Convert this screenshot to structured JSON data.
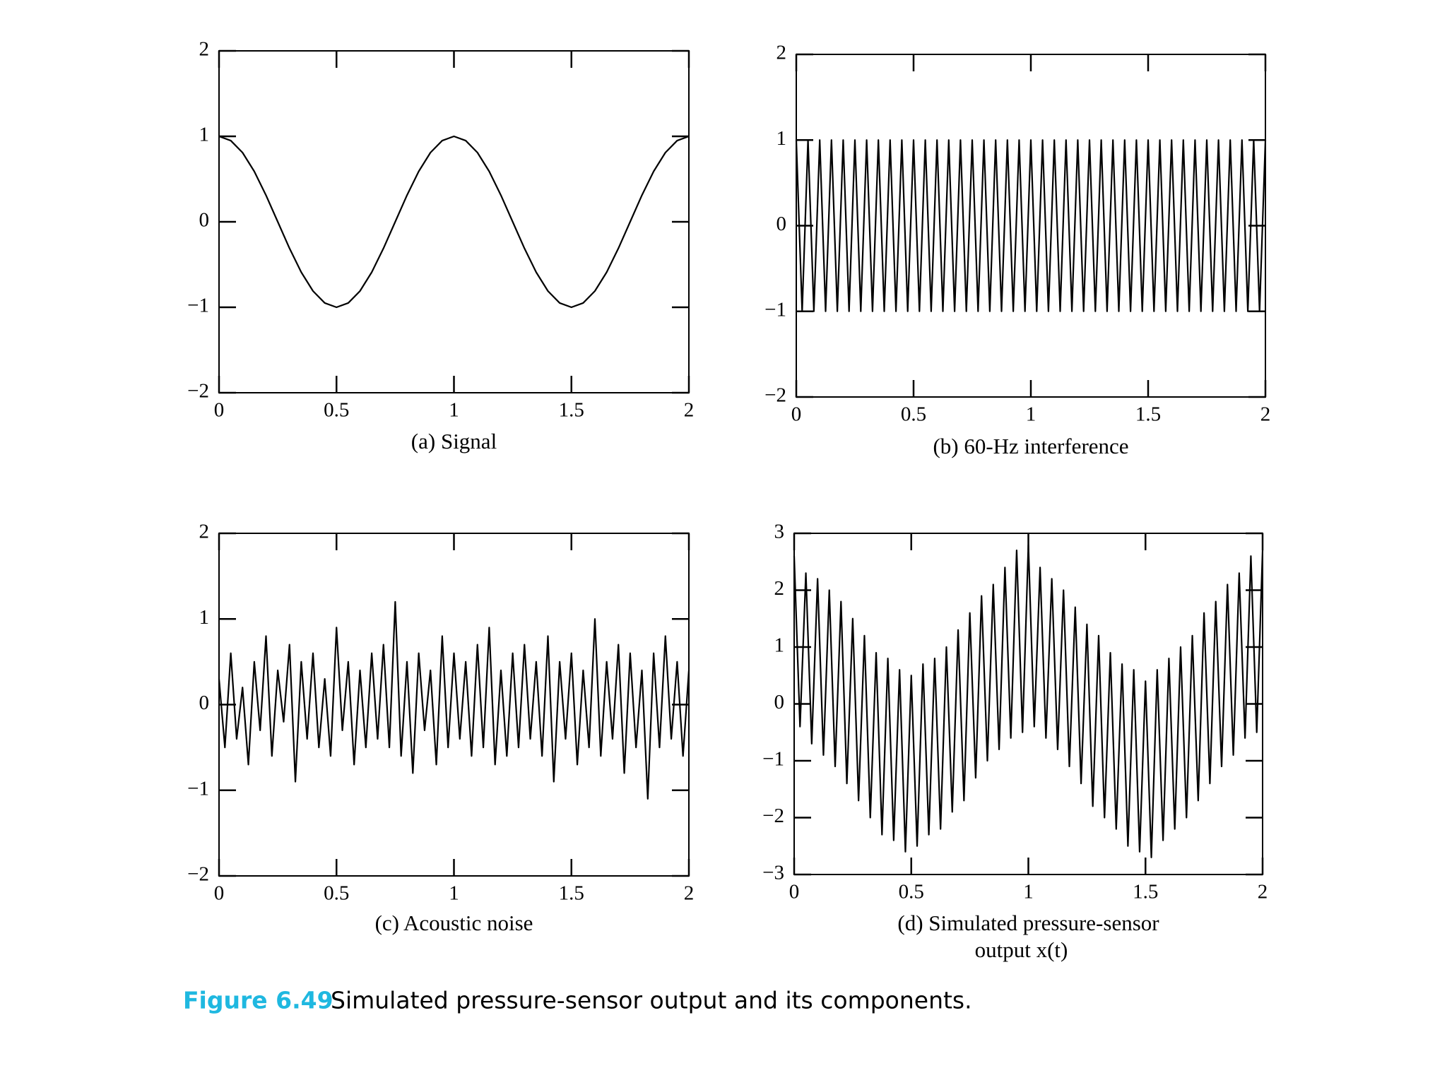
{
  "chart_data": [
    {
      "type": "line",
      "title": "(a) Signal",
      "x": [
        0,
        0.05,
        0.1,
        0.15,
        0.2,
        0.25,
        0.3,
        0.35,
        0.4,
        0.45,
        0.5,
        0.55,
        0.6,
        0.65,
        0.7,
        0.75,
        0.8,
        0.85,
        0.9,
        0.95,
        1,
        1.05,
        1.1,
        1.15,
        1.2,
        1.25,
        1.3,
        1.35,
        1.4,
        1.45,
        1.5,
        1.55,
        1.6,
        1.65,
        1.7,
        1.75,
        1.8,
        1.85,
        1.9,
        1.95,
        2
      ],
      "values": [
        1,
        0.95,
        0.81,
        0.59,
        0.31,
        0,
        -0.31,
        -0.59,
        -0.81,
        -0.95,
        -1,
        -0.95,
        -0.81,
        -0.59,
        -0.31,
        0,
        0.31,
        0.59,
        0.81,
        0.95,
        1,
        0.95,
        0.81,
        0.59,
        0.31,
        0,
        -0.31,
        -0.59,
        -0.81,
        -0.95,
        -1,
        -0.95,
        -0.81,
        -0.59,
        -0.31,
        0,
        0.31,
        0.59,
        0.81,
        0.95,
        1
      ],
      "color": "#000000",
      "xlim": [
        0,
        2
      ],
      "ylim": [
        -2,
        2
      ],
      "xticks": [
        0,
        0.5,
        1,
        1.5,
        2
      ],
      "yticks": [
        {
          "value": -2,
          "label": "−2"
        },
        {
          "value": -1,
          "label": "−1"
        },
        0,
        1,
        2
      ]
    },
    {
      "type": "line",
      "title": "(b) 60-Hz interference",
      "x": [
        0,
        0.025,
        0.05,
        0.075,
        0.1,
        0.125,
        0.15,
        0.175,
        0.2,
        0.225,
        0.25,
        0.275,
        0.3,
        0.325,
        0.35,
        0.375,
        0.4,
        0.425,
        0.45,
        0.475,
        0.5,
        0.525,
        0.55,
        0.575,
        0.6,
        0.625,
        0.65,
        0.675,
        0.7,
        0.725,
        0.75,
        0.775,
        0.8,
        0.825,
        0.85,
        0.875,
        0.9,
        0.925,
        0.95,
        0.975,
        1,
        1.025,
        1.05,
        1.075,
        1.1,
        1.125,
        1.15,
        1.175,
        1.2,
        1.225,
        1.25,
        1.275,
        1.3,
        1.325,
        1.35,
        1.375,
        1.4,
        1.425,
        1.45,
        1.475,
        1.5,
        1.525,
        1.55,
        1.575,
        1.6,
        1.625,
        1.65,
        1.675,
        1.7,
        1.725,
        1.75,
        1.775,
        1.8,
        1.825,
        1.85,
        1.875,
        1.9,
        1.925,
        1.95,
        1.975,
        2
      ],
      "values": [
        1,
        -1,
        1,
        -1,
        1,
        -1,
        1,
        -1,
        1,
        -1,
        1,
        -1,
        1,
        -1,
        1,
        -1,
        1,
        -1,
        1,
        -1,
        1,
        -1,
        1,
        -1,
        1,
        -1,
        1,
        -1,
        1,
        -1,
        1,
        -1,
        1,
        -1,
        1,
        -1,
        1,
        -1,
        1,
        -1,
        1,
        -1,
        1,
        -1,
        1,
        -1,
        1,
        -1,
        1,
        -1,
        1,
        -1,
        1,
        -1,
        1,
        -1,
        1,
        -1,
        1,
        -1,
        1,
        -1,
        1,
        -1,
        1,
        -1,
        1,
        -1,
        1,
        -1,
        1,
        -1,
        1,
        -1,
        1,
        -1,
        1,
        -1,
        1,
        -1,
        1
      ],
      "color": "#000000",
      "xlim": [
        0,
        2
      ],
      "ylim": [
        -2,
        2
      ],
      "xticks": [
        0,
        0.5,
        1,
        1.5,
        2
      ],
      "yticks": [
        {
          "value": -2,
          "label": "−2"
        },
        {
          "value": -1,
          "label": "−1"
        },
        0,
        1,
        2
      ]
    },
    {
      "type": "line",
      "title": "(c) Acoustic noise",
      "x": [
        0,
        0.025,
        0.05,
        0.075,
        0.1,
        0.125,
        0.15,
        0.175,
        0.2,
        0.225,
        0.25,
        0.275,
        0.3,
        0.325,
        0.35,
        0.375,
        0.4,
        0.425,
        0.45,
        0.475,
        0.5,
        0.525,
        0.55,
        0.575,
        0.6,
        0.625,
        0.65,
        0.675,
        0.7,
        0.725,
        0.75,
        0.775,
        0.8,
        0.825,
        0.85,
        0.875,
        0.9,
        0.925,
        0.95,
        0.975,
        1,
        1.025,
        1.05,
        1.075,
        1.1,
        1.125,
        1.15,
        1.175,
        1.2,
        1.225,
        1.25,
        1.275,
        1.3,
        1.325,
        1.35,
        1.375,
        1.4,
        1.425,
        1.45,
        1.475,
        1.5,
        1.525,
        1.55,
        1.575,
        1.6,
        1.625,
        1.65,
        1.675,
        1.7,
        1.725,
        1.75,
        1.775,
        1.8,
        1.825,
        1.85,
        1.875,
        1.9,
        1.925,
        1.95,
        1.975,
        2
      ],
      "values": [
        0.3,
        -0.5,
        0.6,
        -0.4,
        0.2,
        -0.7,
        0.5,
        -0.3,
        0.8,
        -0.6,
        0.4,
        -0.2,
        0.7,
        -0.9,
        0.5,
        -0.4,
        0.6,
        -0.5,
        0.3,
        -0.6,
        0.9,
        -0.3,
        0.5,
        -0.7,
        0.4,
        -0.5,
        0.6,
        -0.4,
        0.7,
        -0.5,
        1.2,
        -0.6,
        0.5,
        -0.8,
        0.6,
        -0.3,
        0.4,
        -0.7,
        0.8,
        -0.5,
        0.6,
        -0.4,
        0.5,
        -0.6,
        0.7,
        -0.5,
        0.9,
        -0.7,
        0.4,
        -0.6,
        0.6,
        -0.5,
        0.7,
        -0.4,
        0.5,
        -0.6,
        0.8,
        -0.9,
        0.5,
        -0.4,
        0.6,
        -0.7,
        0.4,
        -0.5,
        1.0,
        -0.6,
        0.5,
        -0.4,
        0.7,
        -0.8,
        0.6,
        -0.5,
        0.4,
        -1.1,
        0.6,
        -0.5,
        0.8,
        -0.4,
        0.5,
        -0.6,
        0.4
      ],
      "color": "#000000",
      "xlim": [
        0,
        2
      ],
      "ylim": [
        -2,
        2
      ],
      "xticks": [
        0,
        0.5,
        1,
        1.5,
        2
      ],
      "yticks": [
        {
          "value": -2,
          "label": "−2"
        },
        {
          "value": -1,
          "label": "−1"
        },
        0,
        1,
        2
      ]
    },
    {
      "type": "line",
      "title": [
        "(d) Simulated pressure-sensor",
        "output x(t)"
      ],
      "x": [
        0,
        0.025,
        0.05,
        0.075,
        0.1,
        0.125,
        0.15,
        0.175,
        0.2,
        0.225,
        0.25,
        0.275,
        0.3,
        0.325,
        0.35,
        0.375,
        0.4,
        0.425,
        0.45,
        0.475,
        0.5,
        0.525,
        0.55,
        0.575,
        0.6,
        0.625,
        0.65,
        0.675,
        0.7,
        0.725,
        0.75,
        0.775,
        0.8,
        0.825,
        0.85,
        0.875,
        0.9,
        0.925,
        0.95,
        0.975,
        1,
        1.025,
        1.05,
        1.075,
        1.1,
        1.125,
        1.15,
        1.175,
        1.2,
        1.225,
        1.25,
        1.275,
        1.3,
        1.325,
        1.35,
        1.375,
        1.4,
        1.425,
        1.45,
        1.475,
        1.5,
        1.525,
        1.55,
        1.575,
        1.6,
        1.625,
        1.65,
        1.675,
        1.7,
        1.725,
        1.75,
        1.775,
        1.8,
        1.825,
        1.85,
        1.875,
        1.9,
        1.925,
        1.95,
        1.975,
        2
      ],
      "values": [
        2.6,
        -0.4,
        2.3,
        -0.7,
        2.2,
        -0.9,
        2.0,
        -1.1,
        1.8,
        -1.4,
        1.5,
        -1.7,
        1.2,
        -2.0,
        0.9,
        -2.3,
        0.8,
        -2.4,
        0.6,
        -2.6,
        0.5,
        -2.5,
        0.7,
        -2.3,
        0.8,
        -2.2,
        1.0,
        -1.9,
        1.3,
        -1.7,
        1.6,
        -1.3,
        1.9,
        -1.0,
        2.1,
        -0.8,
        2.4,
        -0.6,
        2.7,
        -0.5,
        2.8,
        -0.4,
        2.4,
        -0.6,
        2.2,
        -0.8,
        2.0,
        -1.1,
        1.7,
        -1.4,
        1.4,
        -1.8,
        1.2,
        -2.0,
        0.9,
        -2.2,
        0.7,
        -2.5,
        0.6,
        -2.6,
        0.4,
        -2.7,
        0.6,
        -2.4,
        0.8,
        -2.2,
        1.0,
        -2.0,
        1.2,
        -1.7,
        1.6,
        -1.4,
        1.8,
        -1.1,
        2.1,
        -0.9,
        2.3,
        -0.6,
        2.6,
        -0.5,
        2.7
      ],
      "color": "#000000",
      "xlim": [
        0,
        2
      ],
      "ylim": [
        -3,
        3
      ],
      "xticks": [
        0,
        0.5,
        1,
        1.5,
        2
      ],
      "yticks": [
        {
          "value": -3,
          "label": "−3"
        },
        {
          "value": -2,
          "label": "−2"
        },
        {
          "value": -1,
          "label": "−1"
        },
        0,
        1,
        2,
        3
      ]
    }
  ],
  "caption": {
    "label": "Figure 6.49",
    "text": "Simulated pressure-sensor output and its components."
  }
}
